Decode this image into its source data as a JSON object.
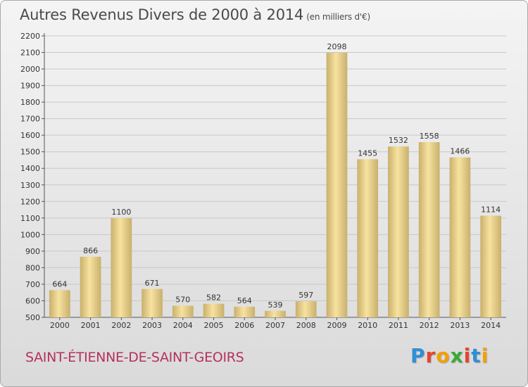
{
  "title": "Autres Revenus Divers de 2000 à 2014",
  "unit": "(en milliers d'€)",
  "commune": "SAINT-ÉTIENNE-DE-SAINT-GEOIRS",
  "logo": {
    "letters": [
      "P",
      "r",
      "o",
      "x",
      "i",
      "t",
      "i"
    ],
    "colors": [
      "#2e8fd6",
      "#e8432b",
      "#f2a100",
      "#3aa935",
      "#e8432b",
      "#2e8fd6",
      "#f2a100"
    ]
  },
  "colors": {
    "bar_light": "#f7e2a0",
    "bar_dark": "#c9b06c",
    "grid": "#c8c8c8",
    "title": "#4a4a4a",
    "commune": "#b5325c"
  },
  "chart_data": {
    "type": "bar",
    "categories": [
      "2000",
      "2001",
      "2002",
      "2003",
      "2004",
      "2005",
      "2006",
      "2007",
      "2008",
      "2009",
      "2010",
      "2011",
      "2012",
      "2013",
      "2014"
    ],
    "values": [
      664,
      866,
      1100,
      671,
      570,
      582,
      564,
      539,
      597,
      2098,
      1455,
      1532,
      1558,
      1466,
      1114
    ],
    "ylim": [
      500,
      2200
    ],
    "yticks": [
      500,
      600,
      700,
      800,
      900,
      1000,
      1100,
      1200,
      1300,
      1400,
      1500,
      1600,
      1700,
      1800,
      1900,
      2000,
      2100,
      2200
    ],
    "grid": true
  }
}
